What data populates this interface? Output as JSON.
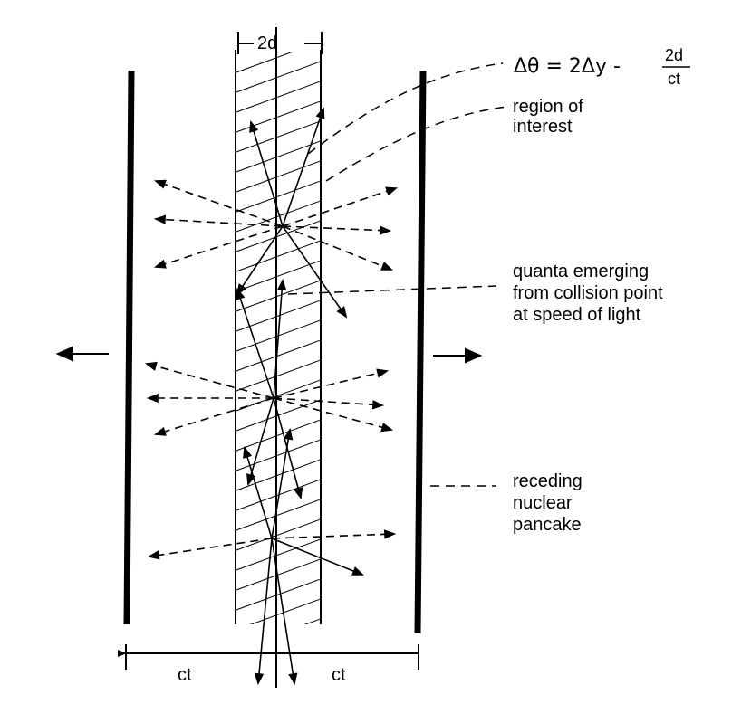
{
  "labels": {
    "width_top": "2d",
    "formula_lhs": "Δθ = 2Δy -",
    "formula_num": "2d",
    "formula_den": "ct",
    "region_line1": "region of",
    "region_line2": "interest",
    "quanta_line1": "quanta emerging",
    "quanta_line2": "from collision point",
    "quanta_line3": "at speed of light",
    "receding_line1": "receding",
    "receding_line2": "nuclear",
    "receding_line3": "pancake",
    "ct_left": "ct",
    "ct_right": "ct"
  }
}
